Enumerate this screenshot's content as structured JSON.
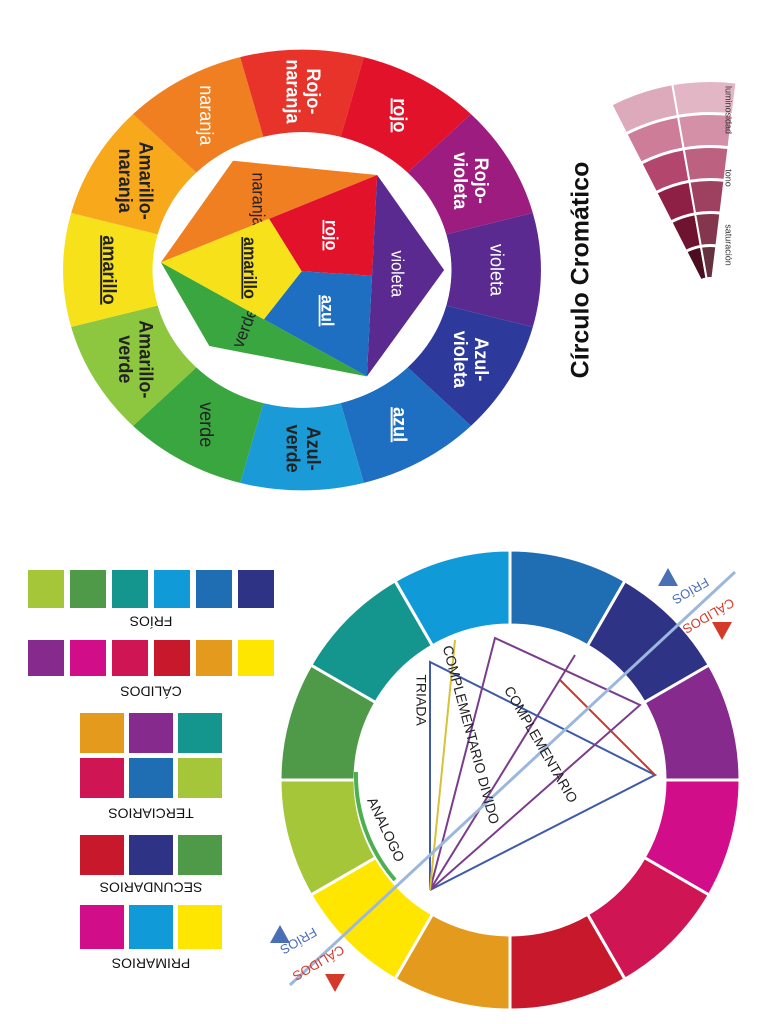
{
  "top_wheel": {
    "title": "Círculo Cromático",
    "scale_labels": [
      "luminosidad",
      "tono",
      "saturación"
    ],
    "outer_labels": [
      [
        "amarillo"
      ],
      [
        "Amarillo-",
        "naranja"
      ],
      [
        "naranja"
      ],
      [
        "Rojo-",
        "naranja"
      ],
      [
        "rojo"
      ],
      [
        "Rojo-",
        "violeta"
      ],
      [
        "violeta"
      ],
      [
        "Azul-",
        "violeta"
      ],
      [
        "azul"
      ],
      [
        "Azul-",
        "verde"
      ],
      [
        "verde"
      ],
      [
        "Amarillo-",
        "verde"
      ]
    ],
    "inner_labels": [
      "naranja",
      "rojo",
      "violeta",
      "azul",
      "verde",
      "amarillo"
    ]
  },
  "bottom_wheel": {
    "scheme_labels": [
      "TRIADA",
      "COMPLEMENTARIO DIVIDO",
      "COMPLEMENTARIO",
      "ANALOGO"
    ],
    "temperature_labels": [
      "FRÍOS",
      "CÁLIDOS",
      "FRÍOS",
      "CÁLIDOS"
    ]
  },
  "swatch_groups": [
    {
      "label": "FRÍOS"
    },
    {
      "label": "CÁLIDOS"
    },
    {
      "label": "TERCIARIOS"
    },
    {
      "label": "SECUNDARIOS"
    },
    {
      "label": "PRIMARIOS"
    }
  ]
}
